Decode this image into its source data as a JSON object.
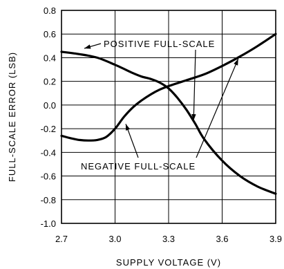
{
  "chart_data": {
    "type": "line",
    "title": "",
    "xlabel": "SUPPLY VOLTAGE (V)",
    "ylabel": "FULL-SCALE ERROR (LSB)",
    "xlim": [
      2.7,
      3.9
    ],
    "ylim": [
      -1.0,
      0.8
    ],
    "x_ticks": [
      2.7,
      3.0,
      3.3,
      3.6,
      3.9
    ],
    "x_tick_labels": [
      "2.7",
      "3.0",
      "3.3",
      "3.6",
      "3.9"
    ],
    "y_ticks": [
      0.8,
      0.6,
      0.4,
      0.2,
      0.0,
      -0.2,
      -0.4,
      -0.6,
      -0.8,
      -1.0
    ],
    "y_tick_labels": [
      "0.8",
      "0.6",
      "0.4",
      "0.2",
      "0.0",
      "-0.2",
      "-0.4",
      "-0.6",
      "-0.8",
      "-1.0"
    ],
    "grid": true,
    "series": [
      {
        "name": "POSITIVE FULL-SCALE",
        "x": [
          2.7,
          2.8,
          2.9,
          3.0,
          3.1,
          3.15,
          3.2,
          3.25,
          3.3,
          3.35,
          3.4,
          3.45,
          3.5,
          3.6,
          3.7,
          3.8,
          3.9
        ],
        "y": [
          0.45,
          0.43,
          0.4,
          0.34,
          0.27,
          0.24,
          0.22,
          0.19,
          0.14,
          0.06,
          -0.04,
          -0.16,
          -0.29,
          -0.47,
          -0.6,
          -0.69,
          -0.75
        ]
      },
      {
        "name": "NEGATIVE FULL-SCALE",
        "x": [
          2.7,
          2.75,
          2.8,
          2.85,
          2.9,
          2.95,
          3.0,
          3.05,
          3.1,
          3.15,
          3.2,
          3.25,
          3.3,
          3.4,
          3.5,
          3.6,
          3.7,
          3.8,
          3.9
        ],
        "y": [
          -0.26,
          -0.28,
          -0.295,
          -0.3,
          -0.295,
          -0.27,
          -0.2,
          -0.1,
          -0.02,
          0.04,
          0.09,
          0.13,
          0.16,
          0.21,
          0.26,
          0.33,
          0.41,
          0.5,
          0.6
        ]
      }
    ],
    "annotations": [
      {
        "text": "POSITIVE FULL-SCALE",
        "target_series": "POSITIVE FULL-SCALE"
      },
      {
        "text": "NEGATIVE FULL-SCALE",
        "target_series": "NEGATIVE FULL-SCALE"
      }
    ]
  }
}
